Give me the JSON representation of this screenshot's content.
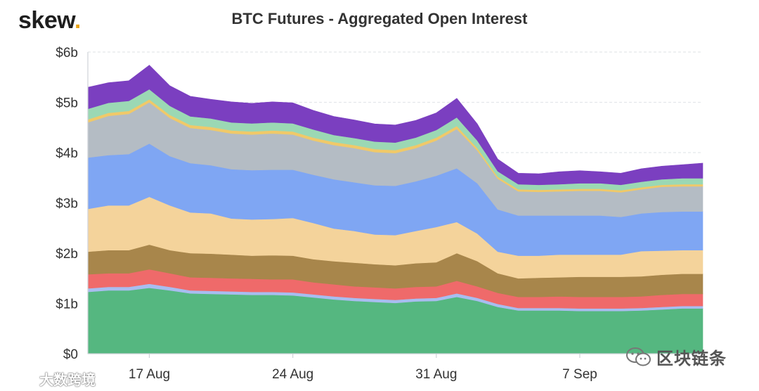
{
  "brand": {
    "logo_text": "skew",
    "logo_dot": "."
  },
  "watermarks": {
    "right_text": "区块链条",
    "left_text": "大数跨境"
  },
  "chart_data": {
    "type": "area",
    "stacked": true,
    "title": "BTC Futures - Aggregated Open Interest",
    "xlabel": "",
    "ylabel": "",
    "x": [
      "2020-08-14",
      "2020-08-15",
      "2020-08-16",
      "2020-08-17",
      "2020-08-18",
      "2020-08-19",
      "2020-08-20",
      "2020-08-21",
      "2020-08-22",
      "2020-08-23",
      "2020-08-24",
      "2020-08-25",
      "2020-08-26",
      "2020-08-27",
      "2020-08-28",
      "2020-08-29",
      "2020-08-30",
      "2020-08-31",
      "2020-09-01",
      "2020-09-02",
      "2020-09-03",
      "2020-09-04",
      "2020-09-05",
      "2020-09-06",
      "2020-09-07",
      "2020-09-08",
      "2020-09-09",
      "2020-09-10",
      "2020-09-11",
      "2020-09-12",
      "2020-09-13"
    ],
    "x_ticks": [
      "17 Aug",
      "24 Aug",
      "31 Aug",
      "7 Sep"
    ],
    "x_tick_dates": [
      "2020-08-17",
      "2020-08-24",
      "2020-08-31",
      "2020-09-07"
    ],
    "y_ticks": [
      "$0",
      "$1b",
      "$2b",
      "$3b",
      "$4b",
      "$5b",
      "$6b"
    ],
    "y_tick_values": [
      0,
      1,
      2,
      3,
      4,
      5,
      6
    ],
    "ylim": [
      0,
      6
    ],
    "unit": "USD billions",
    "grid": true,
    "legend": "none",
    "series": [
      {
        "color": "#55b780",
        "values": [
          1.23,
          1.26,
          1.26,
          1.31,
          1.26,
          1.2,
          1.19,
          1.18,
          1.17,
          1.17,
          1.16,
          1.12,
          1.08,
          1.05,
          1.03,
          1.01,
          1.04,
          1.05,
          1.13,
          1.05,
          0.93,
          0.86,
          0.86,
          0.86,
          0.85,
          0.85,
          0.85,
          0.86,
          0.88,
          0.9,
          0.9
        ]
      },
      {
        "color": "#a8bdf0",
        "values": [
          0.07,
          0.07,
          0.07,
          0.08,
          0.07,
          0.06,
          0.06,
          0.06,
          0.06,
          0.06,
          0.06,
          0.06,
          0.06,
          0.06,
          0.06,
          0.06,
          0.06,
          0.06,
          0.07,
          0.06,
          0.06,
          0.05,
          0.05,
          0.05,
          0.05,
          0.05,
          0.05,
          0.05,
          0.05,
          0.05,
          0.05
        ]
      },
      {
        "color": "#ef6a6a",
        "values": [
          0.28,
          0.27,
          0.27,
          0.29,
          0.27,
          0.26,
          0.26,
          0.26,
          0.26,
          0.25,
          0.26,
          0.24,
          0.24,
          0.23,
          0.23,
          0.23,
          0.23,
          0.23,
          0.25,
          0.23,
          0.22,
          0.22,
          0.22,
          0.23,
          0.23,
          0.23,
          0.23,
          0.23,
          0.24,
          0.24,
          0.24
        ]
      },
      {
        "color": "#a8864b",
        "values": [
          0.45,
          0.46,
          0.46,
          0.49,
          0.46,
          0.48,
          0.48,
          0.47,
          0.46,
          0.48,
          0.47,
          0.46,
          0.46,
          0.47,
          0.46,
          0.46,
          0.47,
          0.48,
          0.55,
          0.5,
          0.39,
          0.37,
          0.38,
          0.38,
          0.4,
          0.4,
          0.4,
          0.4,
          0.4,
          0.4,
          0.4
        ]
      },
      {
        "color": "#f4d39b",
        "values": [
          0.85,
          0.89,
          0.89,
          0.95,
          0.89,
          0.81,
          0.8,
          0.72,
          0.72,
          0.72,
          0.75,
          0.72,
          0.65,
          0.63,
          0.59,
          0.6,
          0.64,
          0.7,
          0.62,
          0.55,
          0.43,
          0.45,
          0.44,
          0.45,
          0.44,
          0.44,
          0.44,
          0.5,
          0.48,
          0.47,
          0.47
        ]
      },
      {
        "color": "#7fa6f3",
        "values": [
          1.02,
          1.0,
          1.02,
          1.06,
          0.98,
          0.98,
          0.96,
          0.98,
          0.98,
          0.98,
          0.96,
          0.96,
          0.98,
          0.97,
          0.98,
          0.98,
          0.99,
          1.02,
          1.07,
          1.0,
          0.84,
          0.8,
          0.8,
          0.78,
          0.78,
          0.78,
          0.75,
          0.75,
          0.77,
          0.77,
          0.77
        ]
      },
      {
        "color": "#b4bcc4",
        "values": [
          0.7,
          0.78,
          0.8,
          0.82,
          0.76,
          0.7,
          0.7,
          0.71,
          0.71,
          0.72,
          0.7,
          0.68,
          0.68,
          0.68,
          0.66,
          0.65,
          0.66,
          0.7,
          0.78,
          0.65,
          0.61,
          0.48,
          0.47,
          0.48,
          0.49,
          0.49,
          0.49,
          0.48,
          0.5,
          0.5,
          0.5
        ]
      },
      {
        "color": "#f0c969",
        "values": [
          0.06,
          0.06,
          0.06,
          0.06,
          0.06,
          0.06,
          0.06,
          0.06,
          0.06,
          0.06,
          0.06,
          0.06,
          0.06,
          0.06,
          0.06,
          0.06,
          0.06,
          0.06,
          0.06,
          0.05,
          0.04,
          0.04,
          0.04,
          0.04,
          0.04,
          0.04,
          0.04,
          0.04,
          0.04,
          0.04,
          0.04
        ]
      },
      {
        "color": "#9bd8b4",
        "values": [
          0.21,
          0.2,
          0.2,
          0.2,
          0.18,
          0.17,
          0.17,
          0.16,
          0.16,
          0.16,
          0.16,
          0.16,
          0.14,
          0.14,
          0.15,
          0.15,
          0.15,
          0.15,
          0.17,
          0.15,
          0.11,
          0.1,
          0.1,
          0.1,
          0.11,
          0.11,
          0.11,
          0.11,
          0.11,
          0.12,
          0.12
        ]
      },
      {
        "color": "#7b3fc0",
        "values": [
          0.43,
          0.4,
          0.4,
          0.48,
          0.4,
          0.4,
          0.38,
          0.41,
          0.4,
          0.41,
          0.41,
          0.38,
          0.37,
          0.36,
          0.35,
          0.35,
          0.34,
          0.34,
          0.38,
          0.33,
          0.24,
          0.22,
          0.22,
          0.25,
          0.25,
          0.23,
          0.23,
          0.26,
          0.26,
          0.27,
          0.3
        ]
      }
    ]
  }
}
